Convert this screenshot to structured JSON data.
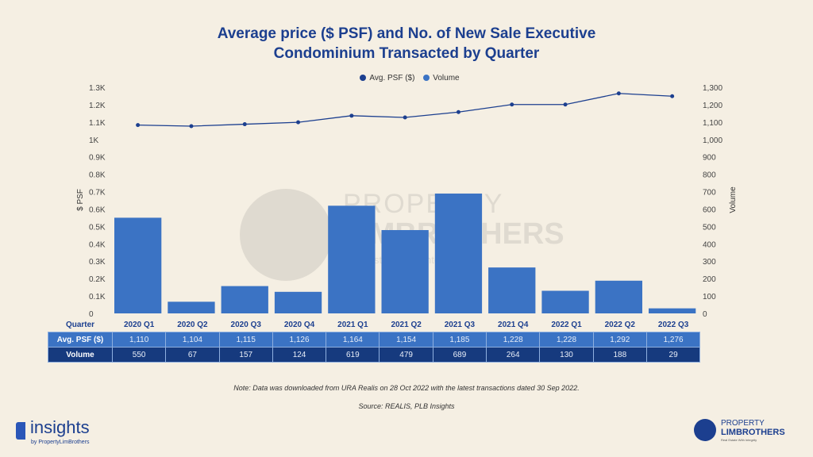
{
  "title_line1": "Average price ($ PSF) and No. of New Sale Executive",
  "title_line2": "Condominium Transacted by Quarter",
  "chart_data": {
    "type": "bar+line",
    "title": "Average price ($ PSF) and No. of New Sale Executive Condominium Transacted by Quarter",
    "categories": [
      "2020 Q1",
      "2020 Q2",
      "2020 Q3",
      "2020 Q4",
      "2021 Q1",
      "2021 Q2",
      "2021 Q3",
      "2021 Q4",
      "2022 Q1",
      "2022 Q2",
      "2022 Q3"
    ],
    "series": [
      {
        "name": "Avg. PSF ($)",
        "type": "line",
        "axis": "left",
        "color": "#1c3f8f",
        "values": [
          1110,
          1104,
          1115,
          1126,
          1164,
          1154,
          1185,
          1228,
          1228,
          1292,
          1276
        ],
        "labels": [
          "1,110",
          "1,104",
          "1,115",
          "1,126",
          "1,164",
          "1,154",
          "1,185",
          "1,228",
          "1,228",
          "1,292",
          "1,276"
        ]
      },
      {
        "name": "Volume",
        "type": "bar",
        "axis": "right",
        "color": "#3b73c4",
        "values": [
          550,
          67,
          157,
          124,
          619,
          479,
          689,
          264,
          130,
          188,
          29
        ]
      }
    ],
    "ylabel_left": "$ PSF",
    "ylabel_right": "Volume",
    "ylim": [
      0,
      1300
    ],
    "left_ticks": [
      "0",
      "0.1K",
      "0.2K",
      "0.3K",
      "0.4K",
      "0.5K",
      "0.6K",
      "0.7K",
      "0.8K",
      "0.9K",
      "1K",
      "1.1K",
      "1.2K",
      "1.3K"
    ],
    "right_ticks": [
      "0",
      "100",
      "200",
      "300",
      "400",
      "500",
      "600",
      "700",
      "800",
      "900",
      "1,000",
      "1,100",
      "1,200",
      "1,300"
    ],
    "legend_position": "top-center",
    "table_headers": [
      "Quarter",
      "Avg. PSF ($)",
      "Volume"
    ]
  },
  "note": "Note: Data was downloaded from URA Realis on 28 Oct 2022 with the latest transactions dated 30 Sep 2022.",
  "source": "Source: REALIS, PLB Insights",
  "watermark": {
    "line1": "PROPERTY",
    "line2": "LIMBROTHERS",
    "line3": "Real Estate With Integrity"
  },
  "logo_left": {
    "name": "insights",
    "sub": "by PropertyLimBrothers"
  },
  "logo_right": {
    "line1": "PROPERTY",
    "line2": "LIMBROTHERS",
    "line3": "Real Estate With Integrity"
  }
}
